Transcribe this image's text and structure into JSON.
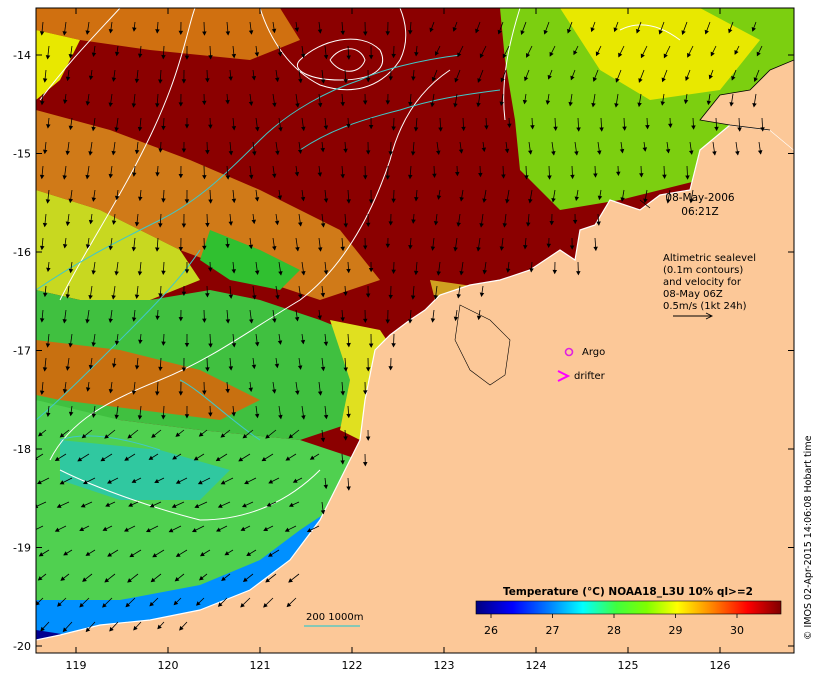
{
  "map": {
    "lon_ticks": [
      "119",
      "120",
      "121",
      "122",
      "123",
      "124",
      "125",
      "126"
    ],
    "lat_ticks": [
      "-14",
      "-15",
      "-16",
      "-17",
      "-18",
      "-19",
      "-20"
    ]
  },
  "annotations": {
    "date": "08-May-2006",
    "time": "06:21Z",
    "sealevel_lines": [
      "Altimetric sealevel",
      "(0.1m contours)",
      "and velocity for",
      "08-May 06Z",
      "0.5m/s (1kt 24h)"
    ],
    "argo_label": "Argo",
    "drifter_label": "drifter",
    "isobath_label": "200  1000m"
  },
  "colorbar": {
    "title": "Temperature (°C) NOAA18_L3U 10% ql>=2",
    "tick_labels": [
      "26",
      "27",
      "28",
      "29",
      "30"
    ],
    "stops": [
      "#00007f",
      "#0000ff",
      "#007fff",
      "#00ffff",
      "#3fff3f",
      "#7fff00",
      "#ffff00",
      "#ff7f00",
      "#ff0000",
      "#7f0000"
    ]
  },
  "credit": "© IMOS 02-Apr-2015 14:06:08 Hobart time",
  "colors": {
    "land": "#fcc898",
    "coast": "#ffffff",
    "contour": "#ffffff",
    "isobath": "#40c8c8",
    "argo": "#e020e0",
    "drifter": "#ff00ff"
  }
}
